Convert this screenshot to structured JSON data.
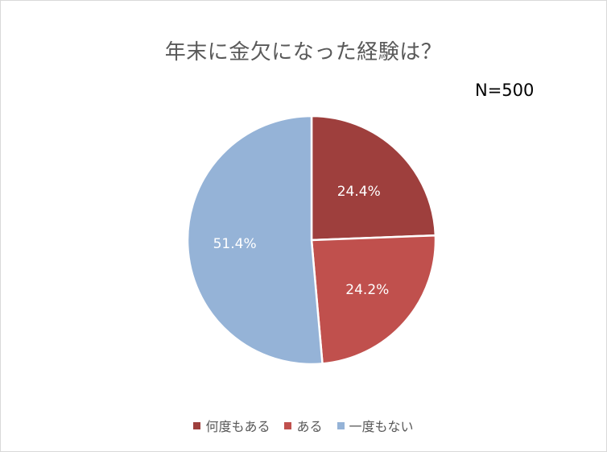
{
  "chart_data": {
    "type": "pie",
    "title": "年末に金欠になった経験は？",
    "annotation": "N=500",
    "categories": [
      "何度もある",
      "ある",
      "一度もない"
    ],
    "values": [
      24.4,
      24.2,
      51.4
    ],
    "value_labels": [
      "24.4%",
      "24.2%",
      "51.4%"
    ],
    "colors": [
      "#9E3F3D",
      "#C0504D",
      "#95B3D7"
    ],
    "legend_position": "bottom",
    "start_angle_deg": 0,
    "direction": "clockwise"
  }
}
